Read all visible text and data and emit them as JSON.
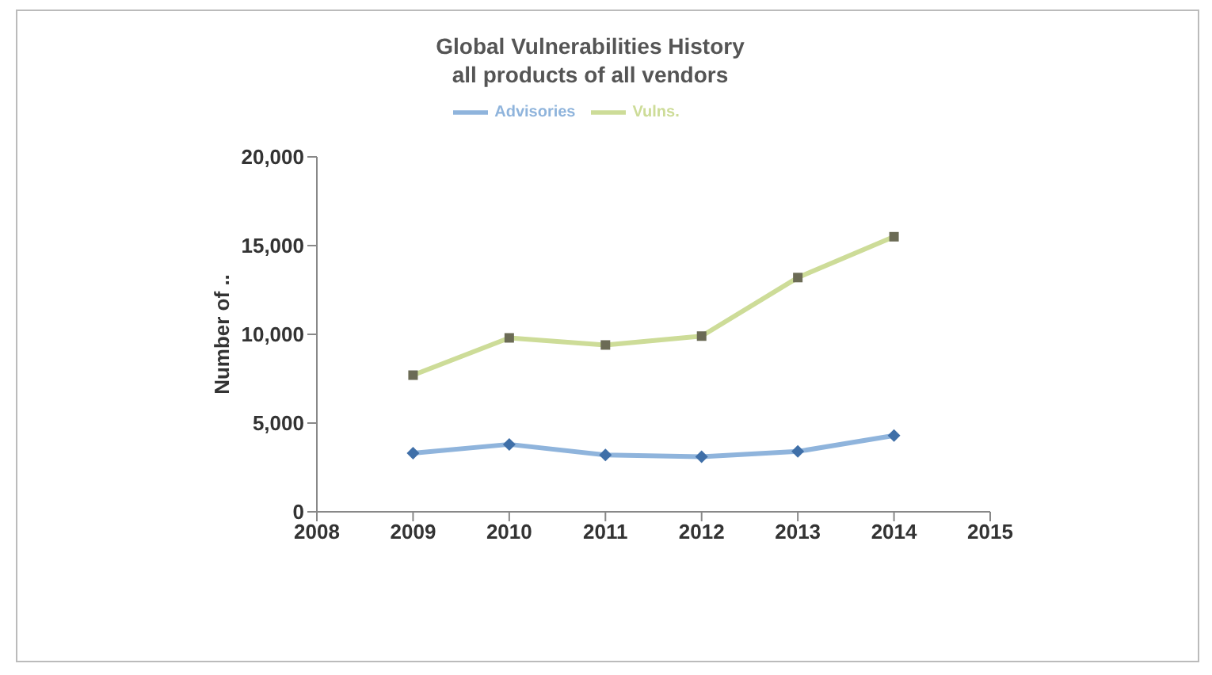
{
  "chart_data": {
    "type": "line",
    "title": "Global Vulnerabilities History",
    "subtitle": "all products of all vendors",
    "ylabel": "Number of ..",
    "x": [
      2009,
      2010,
      2011,
      2012,
      2013,
      2014
    ],
    "series": [
      {
        "name": "Advisories",
        "color": "#8fb4dc",
        "marker": "diamond",
        "values": [
          3300,
          3800,
          3200,
          3100,
          3400,
          4300
        ]
      },
      {
        "name": "Vulns.",
        "color": "#cddc98",
        "marker": "square",
        "values": [
          7700,
          9800,
          9400,
          9900,
          13200,
          15500
        ]
      }
    ],
    "xlim": [
      2008,
      2015
    ],
    "xticks": [
      2008,
      2009,
      2010,
      2011,
      2012,
      2013,
      2014,
      2015
    ],
    "ylim": [
      0,
      20000
    ],
    "yticks": [
      0,
      {
        "value": 5000,
        "label": "5,000"
      },
      {
        "value": 10000,
        "label": "10,000"
      },
      {
        "value": 15000,
        "label": "15,000"
      },
      {
        "value": 20000,
        "label": "20,000"
      }
    ],
    "grid": false,
    "legend": "top"
  }
}
